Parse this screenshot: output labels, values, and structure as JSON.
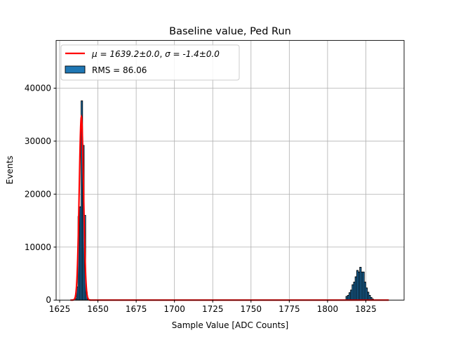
{
  "chart_data": {
    "type": "bar",
    "title": "Baseline value, Ped Run",
    "xlabel": "Sample Value [ADC Counts]",
    "ylabel": "Events",
    "xlim": [
      1622.7,
      1850
    ],
    "ylim": [
      0,
      49000
    ],
    "xticks": [
      1625,
      1650,
      1675,
      1700,
      1725,
      1750,
      1775,
      1800,
      1825
    ],
    "yticks": [
      0,
      10000,
      20000,
      30000,
      40000
    ],
    "grid": true,
    "legend_placement": "upper-left",
    "bin_width": 1,
    "histogram": {
      "name": "RMS = 86.06",
      "color": "#1f77b4",
      "bins": [
        1635,
        1636,
        1637,
        1638,
        1639,
        1640,
        1641,
        1642,
        1643,
        1812,
        1813,
        1814,
        1815,
        1816,
        1817,
        1818,
        1819,
        1820,
        1821,
        1822,
        1823,
        1824,
        1825,
        1826,
        1827,
        1828,
        1829
      ],
      "counts": [
        300,
        2500,
        15800,
        17600,
        37600,
        29200,
        16000,
        1500,
        200,
        700,
        900,
        1400,
        1900,
        2900,
        3400,
        4400,
        5600,
        5300,
        6200,
        5300,
        5300,
        3400,
        2300,
        1500,
        900,
        500,
        200
      ]
    },
    "fit": {
      "name_mu": "μ = 1639.2±0.0",
      "name_sigma": "σ = -1.4±0.0",
      "color": "#ff0000",
      "mu": 1639.2,
      "sigma": 1.4,
      "amplitude": 34600,
      "range": [
        1632,
        1840
      ]
    }
  }
}
